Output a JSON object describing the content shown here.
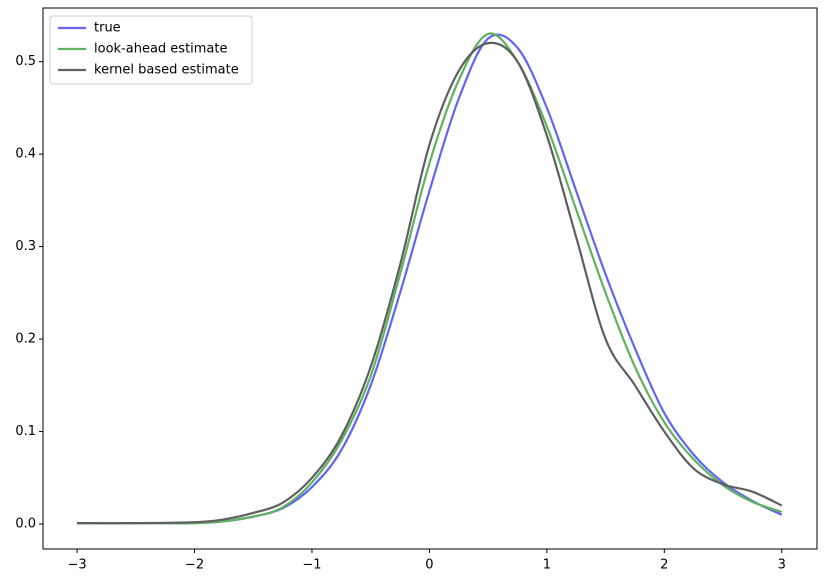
{
  "chart_data": {
    "type": "line",
    "x": [
      -3,
      -2.5,
      -2,
      -1.75,
      -1.5,
      -1.25,
      -1,
      -0.75,
      -0.5,
      -0.25,
      0,
      0.25,
      0.5,
      0.75,
      1,
      1.25,
      1.5,
      1.75,
      2,
      2.25,
      2.5,
      2.75,
      3
    ],
    "series": [
      {
        "name": "true",
        "color": "#6464f4",
        "values": [
          0.001,
          0.001,
          0.001,
          0.003,
          0.008,
          0.017,
          0.04,
          0.08,
          0.15,
          0.25,
          0.36,
          0.46,
          0.525,
          0.515,
          0.45,
          0.36,
          0.27,
          0.19,
          0.12,
          0.075,
          0.045,
          0.025,
          0.01
        ]
      },
      {
        "name": "look-ahead estimate",
        "color": "#5fb25f",
        "values": [
          0.001,
          0.001,
          0.001,
          0.003,
          0.008,
          0.018,
          0.045,
          0.09,
          0.16,
          0.27,
          0.39,
          0.48,
          0.53,
          0.5,
          0.43,
          0.34,
          0.25,
          0.17,
          0.11,
          0.07,
          0.042,
          0.024,
          0.013
        ]
      },
      {
        "name": "kernel based estimate",
        "color": "#5f5f5f",
        "values": [
          0.001,
          0.001,
          0.002,
          0.005,
          0.012,
          0.023,
          0.05,
          0.095,
          0.17,
          0.28,
          0.41,
          0.49,
          0.52,
          0.5,
          0.42,
          0.31,
          0.2,
          0.15,
          0.1,
          0.06,
          0.043,
          0.035,
          0.02
        ]
      }
    ],
    "xlim": [
      -3.29,
      3.3
    ],
    "ylim": [
      -0.027,
      0.558
    ],
    "xticks": [
      {
        "value": -3,
        "label": "−3"
      },
      {
        "value": -2,
        "label": "−2"
      },
      {
        "value": -1,
        "label": "−1"
      },
      0,
      1,
      2,
      3
    ],
    "yticks": [
      {
        "value": 0,
        "label": "0.0"
      },
      0.1,
      0.2,
      0.3,
      0.4,
      0.5
    ],
    "legend": "upper left"
  }
}
